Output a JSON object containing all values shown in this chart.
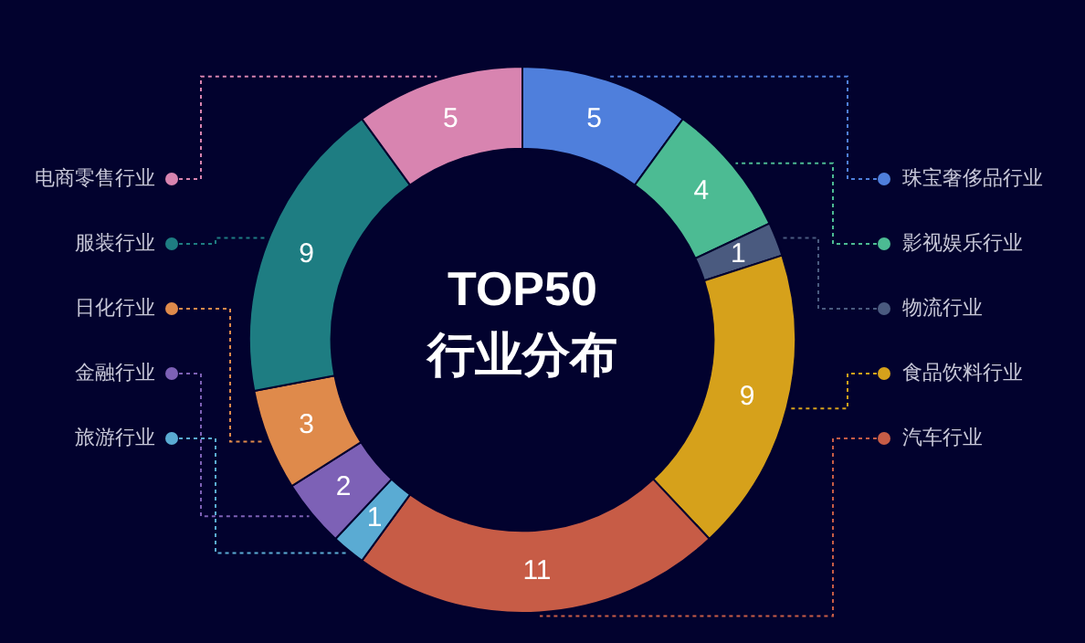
{
  "chart_data": {
    "type": "donut",
    "title": "TOP50",
    "subtitle": "行业分布",
    "categories": [
      "珠宝奢侈品行业",
      "影视娱乐行业",
      "物流行业",
      "食品饮料行业",
      "汽车行业",
      "旅游行业",
      "金融行业",
      "日化行业",
      "服装行业",
      "电商零售行业"
    ],
    "values": [
      5,
      4,
      1,
      9,
      11,
      1,
      2,
      3,
      9,
      5
    ],
    "colors": [
      "#4f7fdc",
      "#4cbb93",
      "#4a5a7f",
      "#d6a11b",
      "#c75c46",
      "#5aabd3",
      "#7d61b6",
      "#df8a4b",
      "#1e7d82",
      "#d884b0"
    ],
    "data_labels": true,
    "legend": "right"
  }
}
